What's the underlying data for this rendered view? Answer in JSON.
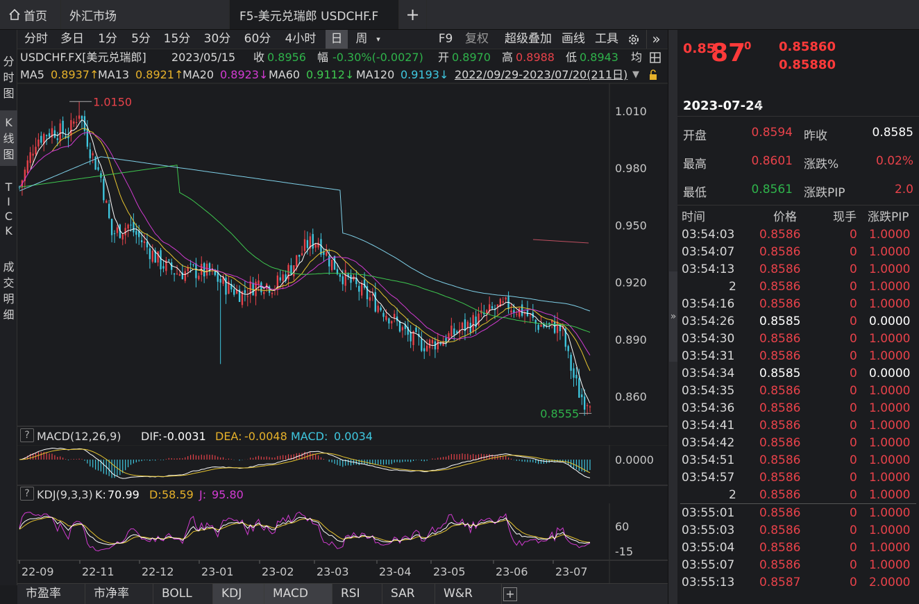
{
  "window_tabs": {
    "home": "首页",
    "forex": "外汇市场",
    "active": "F5-美元兑瑞郎 USDCHF.F",
    "add": "+"
  },
  "side_tabs": [
    {
      "label": "分时图"
    },
    {
      "label": "K线图",
      "active": true
    },
    {
      "label": "TICK"
    },
    {
      "label": "成交明细"
    }
  ],
  "periods": [
    "分时",
    "多日",
    "1分",
    "5分",
    "15分",
    "30分",
    "60分",
    "4小时",
    "日",
    "周"
  ],
  "active_period": "日",
  "toolbar": {
    "f9": "F9",
    "fuquan": "复权",
    "overlay": "超级叠加",
    "draw": "画线",
    "tools": "工具",
    "more": "»"
  },
  "quote_line": {
    "symbol": "USDCHF.FX[美元兑瑞郎]",
    "date": "2023/05/15",
    "close_label": "收",
    "close": "0.8956",
    "change_label": "幅",
    "change": "-0.30%(-0.0027)",
    "open_label": "开",
    "open": "0.8970",
    "high_label": "高",
    "high": "0.8988",
    "low_label": "低",
    "low": "0.8943",
    "avg_label": "均"
  },
  "ma_line": {
    "ma5_label": "MA5",
    "ma5": "0.8937↑",
    "ma13_label": "MA13",
    "ma13": "0.8921↑",
    "ma20_label": "MA20",
    "ma20": "0.8923↓",
    "ma60_label": "MA60",
    "ma60": "0.9112↓",
    "ma120_label": "MA120",
    "ma120": "0.9193↓",
    "range": "2022/09/29-2023/07/20(211日)"
  },
  "price_axis": [
    "1.010",
    "0.980",
    "0.950",
    "0.920",
    "0.890",
    "0.860"
  ],
  "annotations": {
    "high": "1.0150",
    "low": "0.8555"
  },
  "macd": {
    "title": "MACD(12,26,9)",
    "dif_label": "DIF:",
    "dif": "-0.0031",
    "dea_label": "DEA:",
    "dea": "-0.0048",
    "macd_label": "MACD:",
    "macd": "0.0034",
    "axis": "0.0000"
  },
  "kdj": {
    "title": "KDJ(9,3,3)",
    "k_label": "K:",
    "k": "70.99",
    "d_label": "D:",
    "d": "58.59",
    "j_label": "J:",
    "j": "95.80",
    "axis_top": "60",
    "axis_bottom": "-15"
  },
  "time_axis": [
    "22-09",
    "22-11",
    "22-12",
    "23-01",
    "23-02",
    "23-03",
    "23-04",
    "23-05",
    "23-06",
    "23-07"
  ],
  "bottom_tabs": [
    "市盈率",
    "市净率",
    "BOLL",
    "KDJ",
    "MACD",
    "RSI",
    "SAR",
    "W&R"
  ],
  "active_bottom_tab": "KDJ",
  "quote_panel": {
    "price_prefix": "0.85",
    "price_big": "87",
    "price_suffix": "0",
    "bid": "0.85860",
    "ask": "0.85880",
    "date": "2023-07-24",
    "open_label": "开盘",
    "open": "0.8594",
    "prev_close_label": "昨收",
    "prev_close": "0.8585",
    "high_label": "最高",
    "high": "0.8601",
    "change_pct_label": "涨跌%",
    "change_pct": "0.02%",
    "low_label": "最低",
    "low": "0.8561",
    "change_pip_label": "涨跌PIP",
    "change_pip": "2.0"
  },
  "ticks_header": {
    "time": "时间",
    "price": "价格",
    "volume": "现手",
    "pip": "涨跌PIP"
  },
  "ticks": [
    {
      "time": "03:54:03",
      "price": "0.8586",
      "vol": "0",
      "pip": "1.0000",
      "c": "red"
    },
    {
      "time": "03:54:07",
      "price": "0.8586",
      "vol": "0",
      "pip": "1.0000",
      "c": "red"
    },
    {
      "time": "03:54:13",
      "price": "0.8586",
      "vol": "0",
      "pip": "1.0000",
      "c": "red"
    },
    {
      "time": "2",
      "price": "0.8586",
      "vol": "0",
      "pip": "1.0000",
      "c": "red"
    },
    {
      "time": "03:54:16",
      "price": "0.8586",
      "vol": "0",
      "pip": "1.0000",
      "c": "red"
    },
    {
      "time": "03:54:26",
      "price": "0.8585",
      "vol": "0",
      "pip": "0.0000",
      "c": "white"
    },
    {
      "time": "03:54:30",
      "price": "0.8586",
      "vol": "0",
      "pip": "1.0000",
      "c": "red"
    },
    {
      "time": "03:54:31",
      "price": "0.8586",
      "vol": "0",
      "pip": "1.0000",
      "c": "red"
    },
    {
      "time": "03:54:34",
      "price": "0.8585",
      "vol": "0",
      "pip": "0.0000",
      "c": "white"
    },
    {
      "time": "03:54:35",
      "price": "0.8586",
      "vol": "0",
      "pip": "1.0000",
      "c": "red"
    },
    {
      "time": "03:54:36",
      "price": "0.8586",
      "vol": "0",
      "pip": "1.0000",
      "c": "red"
    },
    {
      "time": "03:54:41",
      "price": "0.8586",
      "vol": "0",
      "pip": "1.0000",
      "c": "red"
    },
    {
      "time": "03:54:42",
      "price": "0.8586",
      "vol": "0",
      "pip": "1.0000",
      "c": "red"
    },
    {
      "time": "03:54:51",
      "price": "0.8586",
      "vol": "0",
      "pip": "1.0000",
      "c": "red"
    },
    {
      "time": "03:54:57",
      "price": "0.8586",
      "vol": "0",
      "pip": "1.0000",
      "c": "red"
    },
    {
      "time": "2",
      "price": "0.8586",
      "vol": "0",
      "pip": "1.0000",
      "c": "red"
    },
    {
      "time": "03:55:01",
      "price": "0.8586",
      "vol": "0",
      "pip": "1.0000",
      "c": "red"
    },
    {
      "time": "03:55:03",
      "price": "0.8586",
      "vol": "0",
      "pip": "1.0000",
      "c": "red"
    },
    {
      "time": "03:55:04",
      "price": "0.8586",
      "vol": "0",
      "pip": "1.0000",
      "c": "red"
    },
    {
      "time": "03:55:07",
      "price": "0.8586",
      "vol": "0",
      "pip": "1.0000",
      "c": "red"
    },
    {
      "time": "03:55:13",
      "price": "0.8587",
      "vol": "0",
      "pip": "2.0000",
      "c": "red"
    }
  ],
  "colors": {
    "up": "#e8424a",
    "down": "#3fc8e0",
    "ma5": "#ffffff",
    "ma13": "#e6c430",
    "ma20": "#d23bd2",
    "ma60": "#3ec74f",
    "ma120": "#7fd0e8",
    "accent_red": "#ff3a3a"
  },
  "icons": [
    "home-icon",
    "gear-icon",
    "chart-settings-icon",
    "lock-icon",
    "collapse-icon",
    "add-icon"
  ]
}
